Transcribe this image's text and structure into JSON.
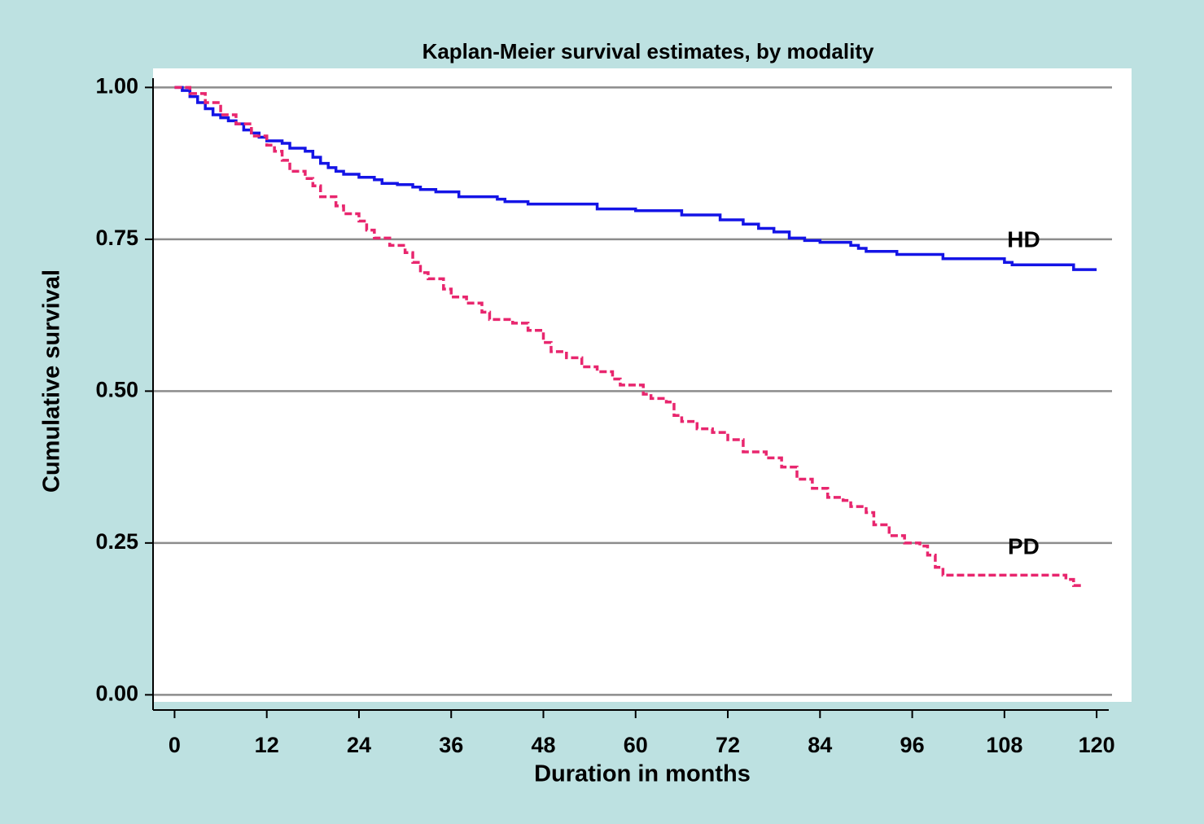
{
  "chart_data": {
    "type": "line",
    "drawstyle": "steps-post",
    "title": "Kaplan-Meier survival estimates, by modality",
    "xlabel": "Duration in months",
    "ylabel": "Cumulative survival",
    "xlim": [
      -2.8,
      122
    ],
    "ylim": [
      -0.025,
      1.03
    ],
    "xticks": [
      0,
      12,
      24,
      36,
      48,
      60,
      72,
      84,
      96,
      108,
      120
    ],
    "yticks": [
      {
        "value": 0,
        "label": "0.00"
      },
      {
        "value": 0.25,
        "label": "0.25"
      },
      {
        "value": 0.5,
        "label": "0.50"
      },
      {
        "value": 0.75,
        "label": "0.75"
      },
      {
        "value": 1,
        "label": "1.00"
      }
    ],
    "grid": true,
    "series": [
      {
        "name": "HD",
        "color": "#1414e6",
        "dash": false,
        "x": [
          0,
          1,
          2,
          3,
          4,
          5,
          6,
          7,
          8,
          9,
          10,
          11,
          12,
          14,
          15,
          17,
          18,
          19,
          20,
          21,
          22,
          24,
          26,
          27,
          29,
          31,
          32,
          34,
          37,
          42,
          43,
          46,
          55,
          60,
          66,
          71,
          74,
          76,
          78,
          80,
          82,
          84,
          88,
          89,
          90,
          94,
          100,
          108,
          109,
          117,
          120
        ],
        "values": [
          1.0,
          0.995,
          0.985,
          0.975,
          0.965,
          0.955,
          0.95,
          0.945,
          0.94,
          0.93,
          0.925,
          0.918,
          0.912,
          0.908,
          0.9,
          0.895,
          0.885,
          0.875,
          0.868,
          0.862,
          0.857,
          0.852,
          0.848,
          0.842,
          0.84,
          0.836,
          0.832,
          0.828,
          0.82,
          0.816,
          0.812,
          0.808,
          0.8,
          0.797,
          0.79,
          0.782,
          0.775,
          0.768,
          0.762,
          0.752,
          0.748,
          0.745,
          0.74,
          0.735,
          0.73,
          0.725,
          0.718,
          0.712,
          0.708,
          0.7,
          0.7
        ]
      },
      {
        "name": "PD",
        "color": "#e8266e",
        "dash": true,
        "x": [
          0,
          2,
          4,
          6,
          8,
          10,
          12,
          13,
          14,
          15,
          17,
          18,
          19,
          21,
          22,
          24,
          25,
          26,
          28,
          30,
          31,
          32,
          33,
          35,
          36,
          38,
          40,
          41,
          44,
          46,
          48,
          49,
          51,
          53,
          55,
          57,
          58,
          61,
          62,
          64,
          65,
          66,
          68,
          70,
          72,
          74,
          77,
          79,
          81,
          83,
          85,
          87,
          88,
          90,
          91,
          93,
          95,
          97,
          98,
          99,
          100,
          116,
          117,
          118
        ],
        "values": [
          1.0,
          0.99,
          0.975,
          0.955,
          0.94,
          0.92,
          0.905,
          0.895,
          0.88,
          0.862,
          0.85,
          0.838,
          0.82,
          0.805,
          0.792,
          0.78,
          0.765,
          0.752,
          0.74,
          0.728,
          0.712,
          0.695,
          0.685,
          0.668,
          0.655,
          0.645,
          0.63,
          0.618,
          0.612,
          0.6,
          0.58,
          0.565,
          0.555,
          0.54,
          0.532,
          0.52,
          0.51,
          0.495,
          0.488,
          0.482,
          0.46,
          0.45,
          0.438,
          0.432,
          0.42,
          0.4,
          0.39,
          0.375,
          0.355,
          0.34,
          0.325,
          0.32,
          0.31,
          0.3,
          0.28,
          0.262,
          0.25,
          0.245,
          0.23,
          0.21,
          0.197,
          0.19,
          0.18,
          0.177
        ]
      }
    ]
  }
}
